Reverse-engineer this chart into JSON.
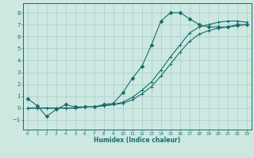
{
  "title": "",
  "xlabel": "Humidex (Indice chaleur)",
  "background_color": "#cce8e0",
  "grid_color": "#aacccc",
  "line_color": "#1a6b6b",
  "ylim": [
    -1.8,
    8.8
  ],
  "xlim": [
    -0.5,
    23.5
  ],
  "yticks": [
    -1,
    0,
    1,
    2,
    3,
    4,
    5,
    6,
    7,
    8
  ],
  "xticks": [
    0,
    1,
    2,
    3,
    4,
    5,
    6,
    7,
    8,
    9,
    10,
    11,
    12,
    13,
    14,
    15,
    16,
    17,
    18,
    19,
    20,
    21,
    22,
    23
  ],
  "series": [
    {
      "x": [
        0,
        1,
        2,
        3,
        4,
        5,
        6,
        7,
        8,
        9,
        10,
        11,
        12,
        13,
        14,
        15,
        16,
        17,
        18,
        19,
        20,
        21,
        22,
        23
      ],
      "y": [
        0.8,
        0.2,
        -0.7,
        -0.1,
        0.3,
        0.1,
        0.1,
        0.1,
        0.3,
        0.4,
        1.3,
        2.5,
        3.5,
        5.3,
        7.3,
        8.0,
        8.0,
        7.5,
        7.0,
        6.8,
        6.8,
        6.8,
        7.0,
        7.0
      ]
    },
    {
      "x": [
        0,
        1,
        2,
        3,
        4,
        5,
        6,
        7,
        8,
        9,
        10,
        11,
        12,
        13,
        14,
        15,
        16,
        17,
        18,
        19,
        20,
        21,
        22,
        23
      ],
      "y": [
        0.0,
        0.0,
        0.0,
        0.0,
        0.0,
        0.0,
        0.1,
        0.1,
        0.2,
        0.3,
        0.5,
        0.9,
        1.5,
        2.2,
        3.2,
        4.3,
        5.3,
        6.3,
        6.8,
        7.0,
        7.2,
        7.3,
        7.3,
        7.2
      ]
    },
    {
      "x": [
        0,
        1,
        2,
        3,
        4,
        5,
        6,
        7,
        8,
        9,
        10,
        11,
        12,
        13,
        14,
        15,
        16,
        17,
        18,
        19,
        20,
        21,
        22,
        23
      ],
      "y": [
        0.0,
        0.0,
        0.0,
        0.0,
        0.0,
        0.0,
        0.1,
        0.1,
        0.2,
        0.3,
        0.4,
        0.7,
        1.2,
        1.8,
        2.7,
        3.7,
        4.7,
        5.6,
        6.2,
        6.5,
        6.7,
        6.8,
        6.9,
        7.0
      ]
    }
  ]
}
